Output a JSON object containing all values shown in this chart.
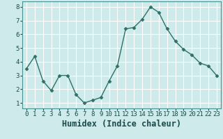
{
  "x": [
    0,
    1,
    2,
    3,
    4,
    5,
    6,
    7,
    8,
    9,
    10,
    11,
    12,
    13,
    14,
    15,
    16,
    17,
    18,
    19,
    20,
    21,
    22,
    23
  ],
  "y": [
    3.5,
    4.4,
    2.6,
    1.9,
    3.0,
    3.0,
    1.6,
    1.0,
    1.2,
    1.4,
    2.6,
    3.7,
    6.4,
    6.5,
    7.1,
    8.0,
    7.6,
    6.4,
    5.5,
    4.9,
    4.5,
    3.9,
    3.7,
    3.0
  ],
  "xlabel": "Humidex (Indice chaleur)",
  "ylim": [
    0.6,
    8.4
  ],
  "xlim": [
    -0.5,
    23.5
  ],
  "yticks": [
    1,
    2,
    3,
    4,
    5,
    6,
    7,
    8
  ],
  "xticks": [
    0,
    1,
    2,
    3,
    4,
    5,
    6,
    7,
    8,
    9,
    10,
    11,
    12,
    13,
    14,
    15,
    16,
    17,
    18,
    19,
    20,
    21,
    22,
    23
  ],
  "line_color": "#2d7068",
  "marker": "D",
  "marker_size": 2.5,
  "bg_color": "#ceeaea",
  "grid_color": "#ffffff",
  "tick_label_fontsize": 6.5,
  "xlabel_fontsize": 8.5,
  "spine_color": "#4a9090"
}
